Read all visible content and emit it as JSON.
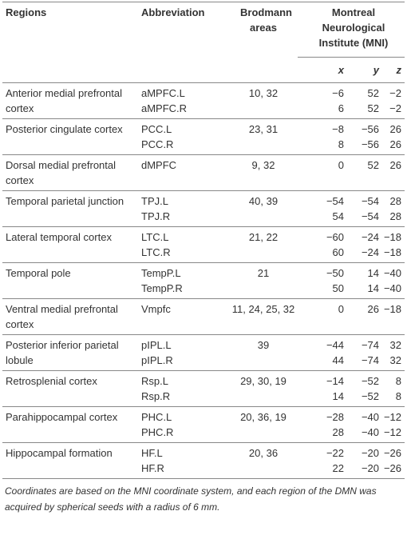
{
  "table": {
    "header": {
      "regions": "Regions",
      "abbreviation": "Abbreviation",
      "brodmann": "Brodmann areas",
      "mni": "Montreal Neurological Institute (MNI)",
      "x": "x",
      "y": "y",
      "z": "z"
    },
    "groups": [
      {
        "region": "Anterior medial prefrontal cortex",
        "brodmann": "10, 32",
        "rows": [
          {
            "abbr": "aMPFC.L",
            "x": "−6",
            "y": "52",
            "z": "−2"
          },
          {
            "abbr": "aMPFC.R",
            "x": "6",
            "y": "52",
            "z": "−2"
          }
        ]
      },
      {
        "region": "Posterior cingulate cortex",
        "brodmann": "23, 31",
        "rows": [
          {
            "abbr": "PCC.L",
            "x": "−8",
            "y": "−56",
            "z": "26"
          },
          {
            "abbr": "PCC.R",
            "x": "8",
            "y": "−56",
            "z": "26"
          }
        ]
      },
      {
        "region": "Dorsal medial prefrontal cortex",
        "brodmann": "9, 32",
        "rows": [
          {
            "abbr": "dMPFC",
            "x": "0",
            "y": "52",
            "z": "26"
          }
        ]
      },
      {
        "region": "Temporal parietal junction",
        "brodmann": "40, 39",
        "rows": [
          {
            "abbr": "TPJ.L",
            "x": "−54",
            "y": "−54",
            "z": "28"
          },
          {
            "abbr": "TPJ.R",
            "x": "54",
            "y": "−54",
            "z": "28"
          }
        ]
      },
      {
        "region": "Lateral temporal cortex",
        "brodmann": "21, 22",
        "rows": [
          {
            "abbr": "LTC.L",
            "x": "−60",
            "y": "−24",
            "z": "−18"
          },
          {
            "abbr": "LTC.R",
            "x": "60",
            "y": "−24",
            "z": "−18"
          }
        ]
      },
      {
        "region": "Temporal pole",
        "brodmann": "21",
        "rows": [
          {
            "abbr": "TempP.L",
            "x": "−50",
            "y": "14",
            "z": "−40"
          },
          {
            "abbr": "TempP.R",
            "x": "50",
            "y": "14",
            "z": "−40"
          }
        ]
      },
      {
        "region": "Ventral medial prefrontal cortex",
        "brodmann": "11, 24, 25, 32",
        "rows": [
          {
            "abbr": "Vmpfc",
            "x": "0",
            "y": "26",
            "z": "−18"
          }
        ]
      },
      {
        "region": "Posterior inferior parietal lobule",
        "brodmann": "39",
        "rows": [
          {
            "abbr": "pIPL.L",
            "x": "−44",
            "y": "−74",
            "z": "32"
          },
          {
            "abbr": "pIPL.R",
            "x": "44",
            "y": "−74",
            "z": "32"
          }
        ]
      },
      {
        "region": "Retrosplenial cortex",
        "brodmann": "29, 30, 19",
        "rows": [
          {
            "abbr": "Rsp.L",
            "x": "−14",
            "y": "−52",
            "z": "8"
          },
          {
            "abbr": "Rsp.R",
            "x": "14",
            "y": "−52",
            "z": "8"
          }
        ]
      },
      {
        "region": "Parahippocampal cortex",
        "brodmann": "20, 36, 19",
        "rows": [
          {
            "abbr": "PHC.L",
            "x": "−28",
            "y": "−40",
            "z": "−12"
          },
          {
            "abbr": "PHC.R",
            "x": "28",
            "y": "−40",
            "z": "−12"
          }
        ]
      },
      {
        "region": "Hippocampal formation",
        "brodmann": "20, 36",
        "rows": [
          {
            "abbr": "HF.L",
            "x": "−22",
            "y": "−20",
            "z": "−26"
          },
          {
            "abbr": "HF.R",
            "x": "22",
            "y": "−20",
            "z": "−26"
          }
        ]
      }
    ],
    "footnote": "Coordinates are based on the MNI coordinate system, and each region of the DMN was acquired by spherical seeds with a radius of 6 mm."
  }
}
